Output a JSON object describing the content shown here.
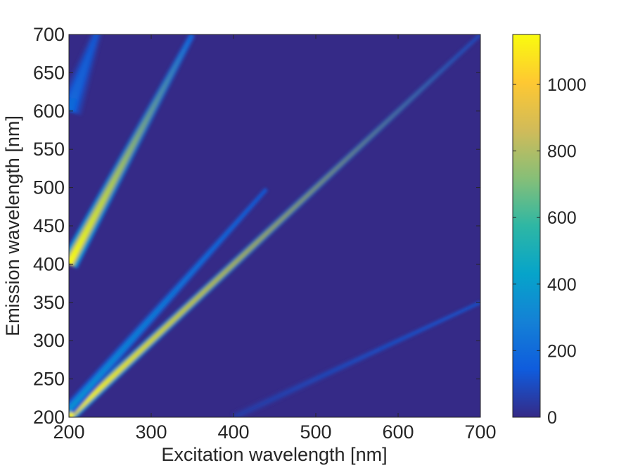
{
  "chart_data": {
    "type": "heatmap",
    "title": "",
    "xlabel": "Excitation wavelength [nm]",
    "ylabel": "Emission wavelength [nm]",
    "xlim": [
      200,
      700
    ],
    "ylim": [
      200,
      700
    ],
    "xticks": [
      200,
      300,
      400,
      500,
      600,
      700
    ],
    "yticks": [
      200,
      250,
      300,
      350,
      400,
      450,
      500,
      550,
      600,
      650,
      700
    ],
    "colorbar": {
      "range": [
        0,
        1150
      ],
      "ticks": [
        0,
        200,
        400,
        600,
        800,
        1000
      ],
      "colormap": "parula",
      "colors": [
        "#352a87",
        "#0f5cdd",
        "#1481d6",
        "#06a4ca",
        "#2eb7a4",
        "#87bf77",
        "#d1bb59",
        "#fec832",
        "#f9fb0e"
      ]
    },
    "background_intensity": 20,
    "bands": [
      {
        "description": "Rayleigh scatter (Em = Ex)",
        "x_start": 200,
        "x_end": 700,
        "slope": 1.0,
        "offset": 0,
        "peak_intensity_start": 1150,
        "peak_intensity_end": 100
      },
      {
        "description": "Raman scatter",
        "x_start": 200,
        "x_end": 440,
        "slope": 1.2,
        "offset": -30,
        "peak_intensity_start": 350,
        "peak_intensity_end": 150
      },
      {
        "description": "Second-order Rayleigh scatter (Em = 2 Ex)",
        "x_start": 200,
        "x_end": 350,
        "slope": 2.0,
        "offset": 0,
        "peak_intensity_start": 1150,
        "peak_intensity_end": 200
      },
      {
        "description": "Third-order scatter (Em = 3 Ex)",
        "x_start": 200,
        "x_end": 235,
        "slope": 3.0,
        "offset": 0,
        "peak_intensity_start": 200,
        "peak_intensity_end": 120
      },
      {
        "description": "Half-order scatter (Em = Ex/2)",
        "x_start": 400,
        "x_end": 700,
        "slope": 0.5,
        "offset": 0,
        "peak_intensity_start": 50,
        "peak_intensity_end": 150
      }
    ]
  }
}
